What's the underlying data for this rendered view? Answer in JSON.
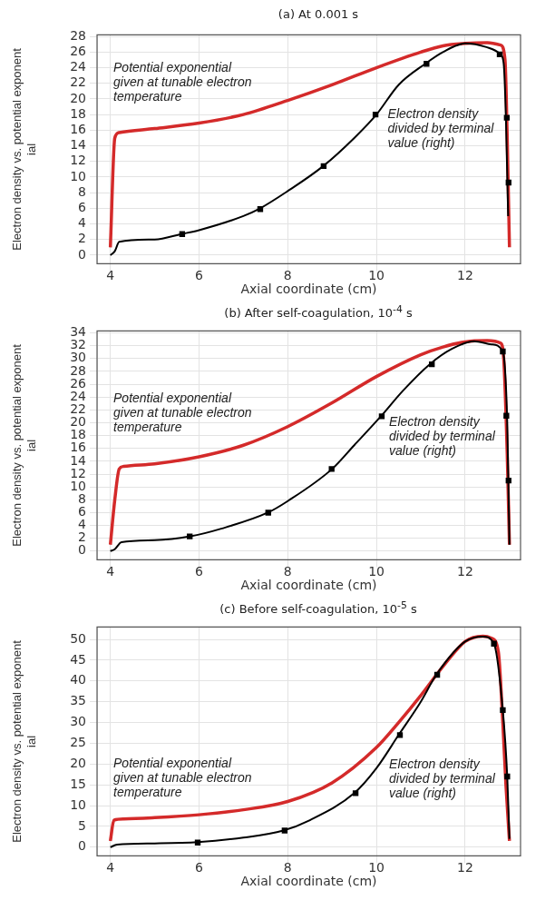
{
  "chart_data": [
    {
      "type": "line",
      "title": "(a) At 0.001 s",
      "xlabel": "Axial coordinate (cm)",
      "ylabel": "Electron density vs. potential exponent\nial",
      "xlim": [
        3.7,
        13.25
      ],
      "xticks": [
        4,
        6,
        8,
        10,
        12
      ],
      "ylim": [
        -1.1,
        28.2
      ],
      "yticks": [
        0,
        2,
        4,
        6,
        8,
        10,
        12,
        14,
        16,
        18,
        20,
        22,
        24,
        26,
        28
      ],
      "grid": true,
      "series": [
        {
          "name": "Potential exponential given at tunable electron temperature",
          "color": "#d42a2a",
          "x": [
            4,
            4.1,
            4.2,
            5,
            6,
            7,
            8,
            9,
            10,
            11,
            11.5,
            12,
            12.5,
            12.8,
            12.9,
            12.95,
            13
          ],
          "values": [
            1,
            15,
            15.7,
            16.2,
            16.9,
            18,
            19.8,
            21.8,
            24,
            26,
            26.8,
            27.1,
            27.2,
            26.9,
            25,
            15,
            1
          ]
        },
        {
          "name": "Electron density divided by terminal value (right)",
          "color": "#000000",
          "x": [
            4,
            4.1,
            4.2,
            5,
            5.6,
            6,
            7,
            7.35,
            8,
            8.8,
            9.5,
            10,
            10.5,
            11.1,
            11.5,
            12,
            12.5,
            12.8,
            12.87,
            12.92,
            12.97
          ],
          "values": [
            0,
            0.5,
            1.7,
            2,
            2.7,
            3.2,
            5,
            5.9,
            8.2,
            11.4,
            15,
            18,
            21.8,
            24.5,
            26,
            27.1,
            26.6,
            25.7,
            24.5,
            17.6,
            5
          ]
        },
        {
          "type": "scatter",
          "color": "#000000",
          "marker": "square",
          "x": [
            5.62,
            7.38,
            8.81,
            9.98,
            11.13,
            12.78,
            12.94,
            12.98
          ],
          "values": [
            2.7,
            5.9,
            11.4,
            18,
            24.5,
            25.7,
            17.6,
            9.3
          ]
        }
      ]
    },
    {
      "type": "line",
      "title": "(b) After self-coagulation, 10$^{-4}$ s",
      "xlabel": "Axial coordinate (cm)",
      "ylabel": "Electron density vs. potential exponent\nial",
      "xlim": [
        3.7,
        13.25
      ],
      "xticks": [
        4,
        6,
        8,
        10,
        12
      ],
      "ylim": [
        -1.35,
        34.3
      ],
      "yticks": [
        0,
        2,
        4,
        6,
        8,
        10,
        12,
        14,
        16,
        18,
        20,
        22,
        24,
        26,
        28,
        30,
        32,
        34
      ],
      "grid": true,
      "series": [
        {
          "name": "Potential exponential given at tunable electron temperature",
          "color": "#d42a2a",
          "x": [
            4,
            4.1,
            4.2,
            4.3,
            5,
            6,
            7,
            8,
            9,
            10,
            11,
            11.5,
            12,
            12.5,
            12.8,
            12.87,
            12.95,
            13
          ],
          "values": [
            1,
            8,
            12.8,
            13.2,
            13.6,
            14.7,
            16.5,
            19.4,
            23.1,
            27.2,
            30.6,
            31.8,
            32.6,
            32.8,
            32.4,
            30,
            15,
            1
          ]
        },
        {
          "name": "Electron density divided by terminal value (right)",
          "color": "#000000",
          "x": [
            4,
            4.1,
            4.25,
            5,
            5.8,
            6.5,
            7.55,
            8,
            9,
            9.5,
            10.1,
            10.6,
            11.2,
            11.7,
            12.2,
            12.6,
            12.85,
            12.95,
            13
          ],
          "values": [
            0,
            0.3,
            1.4,
            1.7,
            2.3,
            3.5,
            6,
            7.8,
            12.8,
            16.5,
            21,
            25,
            29.1,
            31.5,
            32.7,
            32.2,
            31.1,
            20,
            1
          ]
        },
        {
          "type": "scatter",
          "color": "#000000",
          "marker": "square",
          "x": [
            5.79,
            7.56,
            8.99,
            10.12,
            11.25,
            12.85,
            12.93,
            12.98
          ],
          "values": [
            2.3,
            6,
            12.8,
            21,
            29.1,
            31.1,
            21.1,
            11
          ]
        }
      ]
    },
    {
      "type": "line",
      "title": "(c) Before self-coagulation, 10$^{-5}$ s",
      "xlabel": "Axial coordinate (cm)",
      "ylabel": "Electron density vs. potential exponent\nial",
      "xlim": [
        3.7,
        13.25
      ],
      "xticks": [
        4,
        6,
        8,
        10,
        12
      ],
      "ylim": [
        -2.1,
        53
      ],
      "yticks": [
        0,
        5,
        10,
        15,
        20,
        25,
        30,
        35,
        40,
        45,
        50
      ],
      "grid": true,
      "series": [
        {
          "name": "Potential exponential given at tunable electron temperature",
          "color": "#d42a2a",
          "x": [
            4,
            4.08,
            4.3,
            5,
            6,
            7,
            8,
            9,
            10,
            10.5,
            11,
            11.5,
            12,
            12.4,
            12.6,
            12.75,
            12.85,
            12.92,
            13
          ],
          "values": [
            1.5,
            6.5,
            6.8,
            7.1,
            7.8,
            9,
            11,
            15.5,
            24,
            30,
            36.5,
            43.5,
            49.5,
            50.8,
            50.3,
            47,
            30,
            15,
            1.5
          ]
        },
        {
          "name": "Electron density divided by terminal value (right)",
          "color": "#000000",
          "x": [
            4,
            4.15,
            5,
            5.97,
            7,
            7.9,
            8.5,
            9.5,
            10,
            10.5,
            11,
            11.35,
            12,
            12.4,
            12.65,
            12.85,
            12.95,
            13
          ],
          "values": [
            0,
            0.6,
            0.9,
            1.2,
            2.3,
            4,
            6.5,
            13,
            19,
            27,
            35,
            41.5,
            49.5,
            50.7,
            49,
            33,
            17,
            2
          ]
        },
        {
          "type": "scatter",
          "color": "#000000",
          "marker": "square",
          "x": [
            5.97,
            7.93,
            9.53,
            10.53,
            11.37,
            12.65,
            12.85,
            12.95
          ],
          "values": [
            1.1,
            4,
            13,
            27,
            41.5,
            49,
            33,
            17
          ]
        }
      ]
    }
  ]
}
